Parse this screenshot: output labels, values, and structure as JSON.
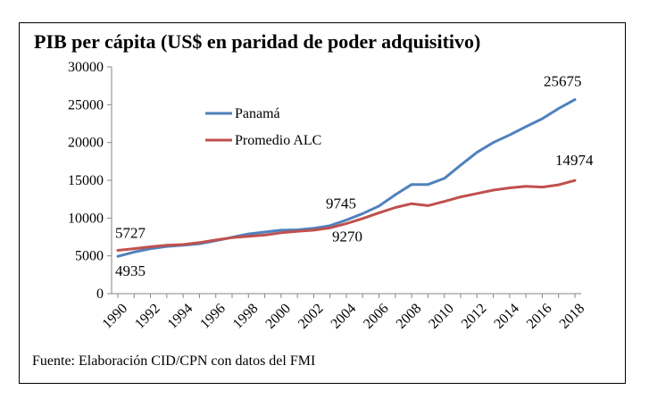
{
  "chart_data": {
    "type": "line",
    "title": "PIB per cápita (US$ en paridad de poder adquisitivo)",
    "xlabel": "",
    "ylabel": "",
    "ylim": [
      0,
      30000
    ],
    "yticks": [
      "0",
      "5000",
      "10000",
      "15000",
      "20000",
      "25000",
      "30000"
    ],
    "xtick_labels": [
      "1990",
      "1992",
      "1994",
      "1996",
      "1998",
      "2000",
      "2002",
      "2004",
      "2006",
      "2008",
      "2010",
      "2012",
      "2014",
      "2016",
      "2018"
    ],
    "x": [
      1990,
      1991,
      1992,
      1993,
      1994,
      1995,
      1996,
      1997,
      1998,
      1999,
      2000,
      2001,
      2002,
      2003,
      2004,
      2005,
      2006,
      2007,
      2008,
      2009,
      2010,
      2011,
      2012,
      2013,
      2014,
      2015,
      2016,
      2017,
      2018
    ],
    "grid": false,
    "legend_position": "upper-left",
    "series": [
      {
        "name": "Panamá",
        "color": "#4F81BD",
        "values": [
          4935,
          5500,
          5950,
          6250,
          6400,
          6600,
          7000,
          7450,
          7900,
          8150,
          8400,
          8450,
          8650,
          9000,
          9745,
          10600,
          11600,
          13100,
          14450,
          14450,
          15250,
          17000,
          18700,
          20000,
          21000,
          22100,
          23150,
          24500,
          25675
        ]
      },
      {
        "name": "Promedio ALC",
        "color": "#C0504D",
        "values": [
          5727,
          5950,
          6200,
          6400,
          6500,
          6750,
          7100,
          7400,
          7600,
          7750,
          8050,
          8250,
          8400,
          8700,
          9270,
          9950,
          10700,
          11400,
          11900,
          11650,
          12200,
          12800,
          13250,
          13700,
          14000,
          14200,
          14100,
          14400,
          14974
        ]
      }
    ],
    "annotations": [
      {
        "text": "5727",
        "x": 1990,
        "y": 5727
      },
      {
        "text": "4935",
        "x": 1990,
        "y": 4935
      },
      {
        "text": "9745",
        "x": 2004,
        "y": 9745
      },
      {
        "text": "9270",
        "x": 2004,
        "y": 9270
      },
      {
        "text": "25675",
        "x": 2018,
        "y": 25675
      },
      {
        "text": "14974",
        "x": 2018,
        "y": 14974
      }
    ]
  },
  "source_note": "Fuente: Elaboración CID/CPN con datos del FMI"
}
